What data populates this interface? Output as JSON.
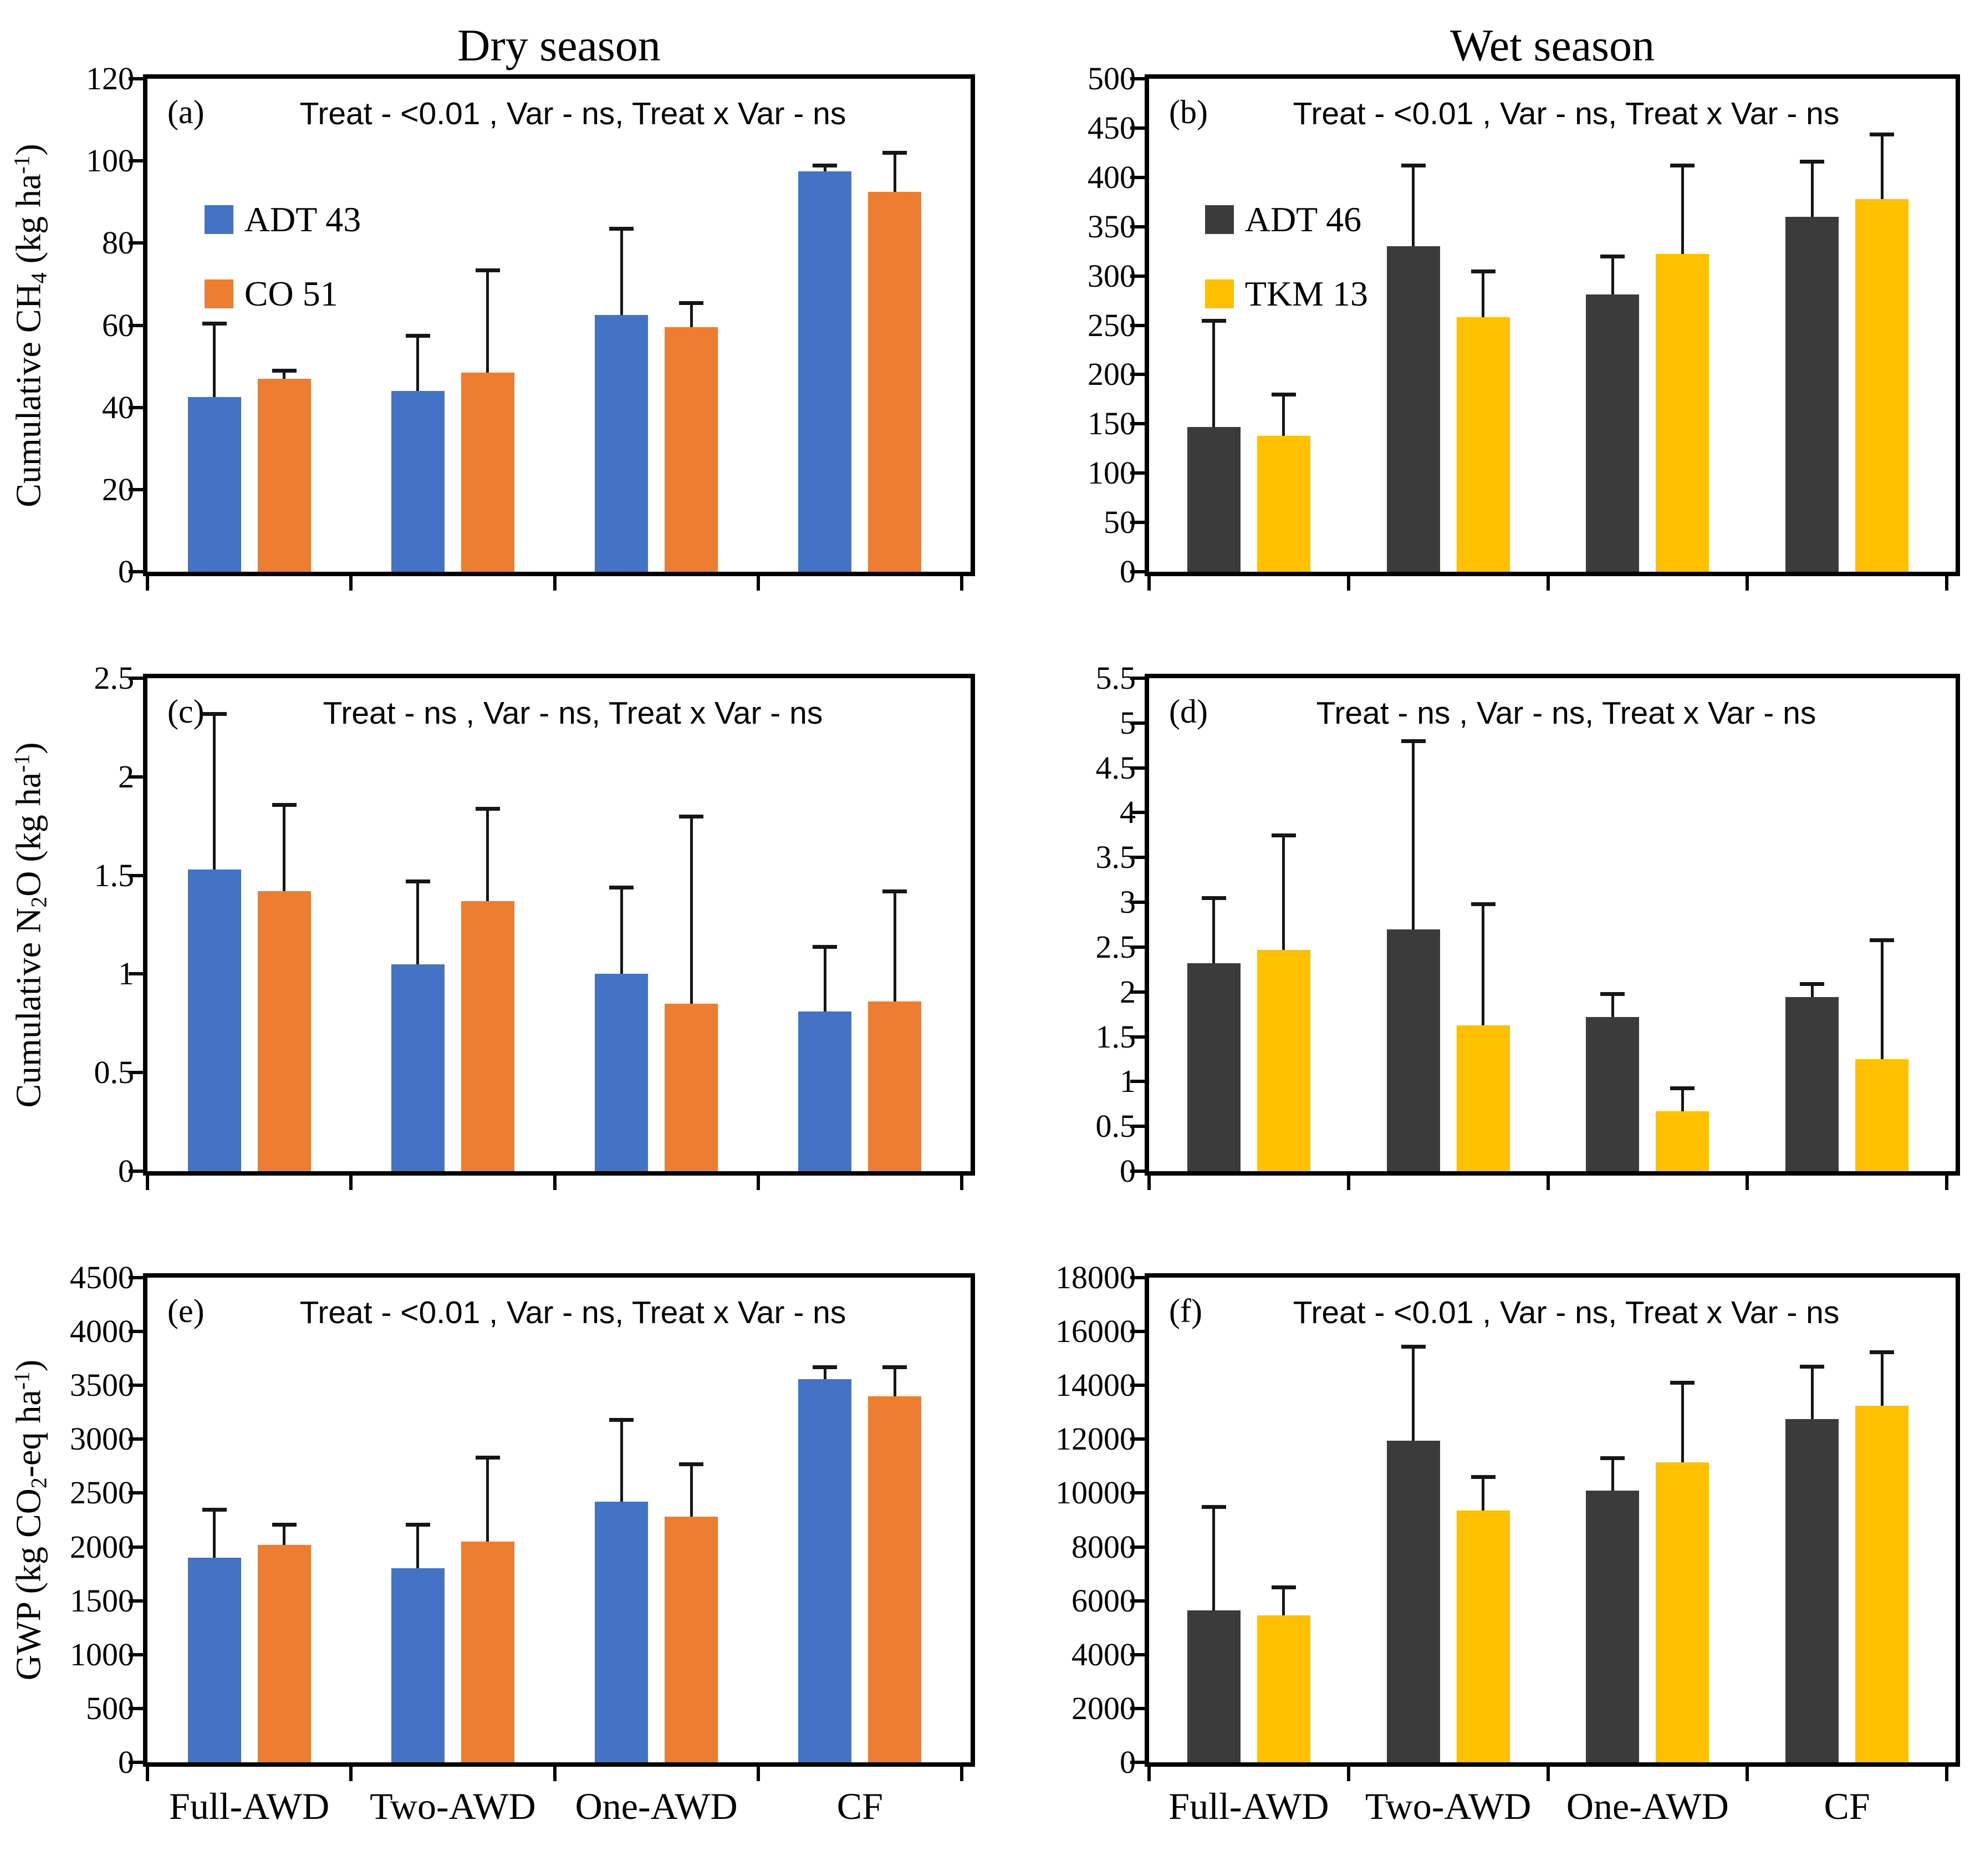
{
  "figure": {
    "column_titles": [
      "Dry season",
      "Wet season"
    ],
    "categories": [
      "Full-AWD",
      "Two-AWD",
      "One-AWD",
      "CF"
    ],
    "colors": {
      "adt43_blue": "#4472C4",
      "co51_orange": "#ED7D31",
      "adt46_dark": "#3B3B3B",
      "tkm13_yellow": "#FFC000",
      "axis_black": "#000000",
      "error_bar": "#161616"
    }
  },
  "chart_data": [
    {
      "panel": "(a)",
      "type": "bar",
      "title": "Dry season",
      "annotation": "Treat - <0.01 , Var - ns, Treat x Var - ns",
      "ylabel": "Cumulative CH4 (kg ha-1)",
      "ylabel_parts": [
        [
          "t",
          "Cumulative CH"
        ],
        [
          "s",
          "4"
        ],
        [
          "t",
          " (kg ha"
        ],
        [
          "u",
          "-1"
        ],
        [
          "t",
          ")"
        ]
      ],
      "ylim": [
        0,
        120
      ],
      "ytick_step": 20,
      "grid": false,
      "legend_position": "inside-upper-left",
      "categories": [
        "Full-AWD",
        "Two-AWD",
        "One-AWD",
        "CF"
      ],
      "legend": [
        {
          "name": "ADT 43",
          "color": "#4472C4"
        },
        {
          "name": "CO 51",
          "color": "#ED7D31"
        }
      ],
      "series": [
        {
          "name": "ADT 43",
          "color": "#4472C4",
          "values": [
            42.5,
            44,
            62.5,
            97.5
          ],
          "errors": [
            18,
            13.5,
            21,
            1.5
          ]
        },
        {
          "name": "CO 51",
          "color": "#ED7D31",
          "values": [
            47,
            48.5,
            59.5,
            92.5
          ],
          "errors": [
            2,
            25,
            6,
            9.5
          ]
        }
      ],
      "show_xlabels": false
    },
    {
      "panel": "(b)",
      "type": "bar",
      "title": "Wet season",
      "annotation": "Treat - <0.01 , Var - ns, Treat x Var - ns",
      "ylabel": "",
      "ylabel_parts": null,
      "ylim": [
        0,
        500
      ],
      "ytick_step": 50,
      "grid": false,
      "legend_position": "inside-upper-left",
      "categories": [
        "Full-AWD",
        "Two-AWD",
        "One-AWD",
        "CF"
      ],
      "legend": [
        {
          "name": "ADT 46",
          "color": "#3B3B3B"
        },
        {
          "name": "TKM 13",
          "color": "#FFC000"
        }
      ],
      "series": [
        {
          "name": "ADT 46",
          "color": "#3B3B3B",
          "values": [
            147,
            330,
            281,
            360
          ],
          "errors": [
            108,
            82,
            39,
            56
          ]
        },
        {
          "name": "TKM 13",
          "color": "#FFC000",
          "values": [
            138,
            258,
            322,
            378
          ],
          "errors": [
            42,
            47,
            90,
            66
          ]
        }
      ],
      "show_xlabels": false
    },
    {
      "panel": "(c)",
      "type": "bar",
      "title": "Dry season",
      "annotation": "Treat - ns , Var - ns, Treat x Var - ns",
      "ylabel": "Cumulative N2O (kg ha-1)",
      "ylabel_parts": [
        [
          "t",
          "Cumulative N"
        ],
        [
          "s",
          "2"
        ],
        [
          "t",
          "O (kg ha"
        ],
        [
          "u",
          "-1"
        ],
        [
          "t",
          ")"
        ]
      ],
      "ylim": [
        0,
        2.5
      ],
      "ytick_step": 0.5,
      "grid": false,
      "legend_position": "none",
      "categories": [
        "Full-AWD",
        "Two-AWD",
        "One-AWD",
        "CF"
      ],
      "series": [
        {
          "name": "ADT 43",
          "color": "#4472C4",
          "values": [
            1.53,
            1.05,
            1.0,
            0.81
          ],
          "errors": [
            0.79,
            0.42,
            0.44,
            0.33
          ]
        },
        {
          "name": "CO 51",
          "color": "#ED7D31",
          "values": [
            1.42,
            1.37,
            0.85,
            0.86
          ],
          "errors": [
            0.44,
            0.47,
            0.95,
            0.56
          ]
        }
      ],
      "show_xlabels": false
    },
    {
      "panel": "(d)",
      "type": "bar",
      "title": "Wet season",
      "annotation": "Treat - ns , Var - ns, Treat x Var - ns",
      "ylabel": "",
      "ylabel_parts": null,
      "ylim": [
        0,
        5.5
      ],
      "ytick_step": 0.5,
      "grid": false,
      "legend_position": "none",
      "categories": [
        "Full-AWD",
        "Two-AWD",
        "One-AWD",
        "CF"
      ],
      "series": [
        {
          "name": "ADT 46",
          "color": "#3B3B3B",
          "values": [
            2.32,
            2.7,
            1.72,
            1.94
          ],
          "errors": [
            0.73,
            2.1,
            0.26,
            0.15
          ]
        },
        {
          "name": "TKM 13",
          "color": "#FFC000",
          "values": [
            2.47,
            1.63,
            0.67,
            1.25
          ],
          "errors": [
            1.28,
            1.35,
            0.26,
            1.33
          ]
        }
      ],
      "show_xlabels": false
    },
    {
      "panel": "(e)",
      "type": "bar",
      "title": "Dry season",
      "annotation": "Treat - <0.01 , Var - ns, Treat x Var - ns",
      "ylabel": "GWP (kg CO2-eq ha-1)",
      "ylabel_parts": [
        [
          "t",
          "GWP (kg CO"
        ],
        [
          "s",
          "2"
        ],
        [
          "t",
          "-eq ha"
        ],
        [
          "u",
          "-1"
        ],
        [
          "t",
          ")"
        ]
      ],
      "ylim": [
        0,
        4500
      ],
      "ytick_step": 500,
      "grid": false,
      "legend_position": "none",
      "categories": [
        "Full-AWD",
        "Two-AWD",
        "One-AWD",
        "CF"
      ],
      "series": [
        {
          "name": "ADT 43",
          "color": "#4472C4",
          "values": [
            1900,
            1800,
            2420,
            3560
          ],
          "errors": [
            450,
            410,
            760,
            110
          ]
        },
        {
          "name": "CO 51",
          "color": "#ED7D31",
          "values": [
            2020,
            2050,
            2280,
            3400
          ],
          "errors": [
            190,
            780,
            490,
            270
          ]
        }
      ],
      "show_xlabels": true
    },
    {
      "panel": "(f)",
      "type": "bar",
      "title": "Wet season",
      "annotation": "Treat - <0.01 , Var - ns, Treat x Var - ns",
      "ylabel": "",
      "ylabel_parts": null,
      "ylim": [
        0,
        18000
      ],
      "ytick_step": 2000,
      "grid": false,
      "legend_position": "none",
      "categories": [
        "Full-AWD",
        "Two-AWD",
        "One-AWD",
        "CF"
      ],
      "series": [
        {
          "name": "ADT 46",
          "color": "#3B3B3B",
          "values": [
            5650,
            11950,
            10100,
            12750
          ],
          "errors": [
            3850,
            3500,
            1200,
            1950
          ]
        },
        {
          "name": "TKM 13",
          "color": "#FFC000",
          "values": [
            5450,
            9350,
            11150,
            13250
          ],
          "errors": [
            1050,
            1250,
            2950,
            2000
          ]
        }
      ],
      "show_xlabels": true
    }
  ]
}
